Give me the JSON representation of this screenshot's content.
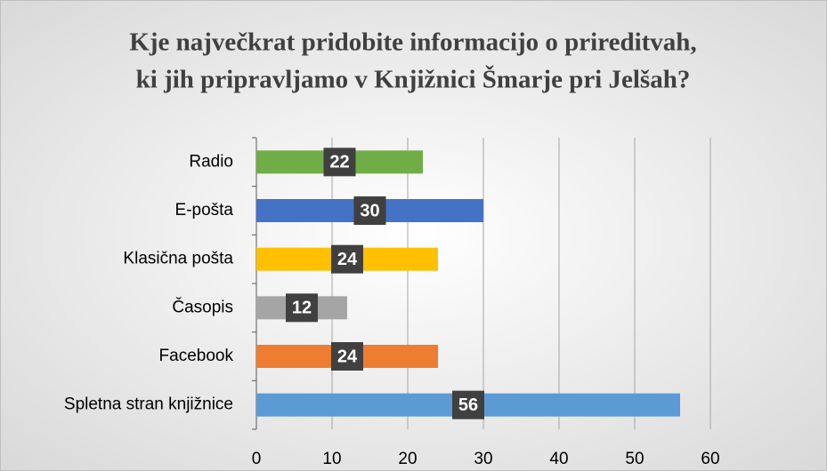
{
  "chart_data": {
    "type": "bar",
    "orientation": "horizontal",
    "title": [
      "Kje največkrat pridobite informacijo o prireditvah,",
      "ki jih pripravljamo v Knjižnici Šmarje pri Jelšah?"
    ],
    "categories": [
      "Radio",
      "E-pošta",
      "Klasična pošta",
      "Časopis",
      "Facebook",
      "Spletna stran knjižnice"
    ],
    "values": [
      22,
      30,
      24,
      12,
      24,
      56
    ],
    "colors": [
      "#70ad47",
      "#4472c4",
      "#ffc000",
      "#a5a5a5",
      "#ed7d31",
      "#5b9bd5"
    ],
    "xlim": [
      0,
      60
    ],
    "xticks": [
      0,
      10,
      20,
      30,
      40,
      50,
      60
    ],
    "grid": true
  }
}
